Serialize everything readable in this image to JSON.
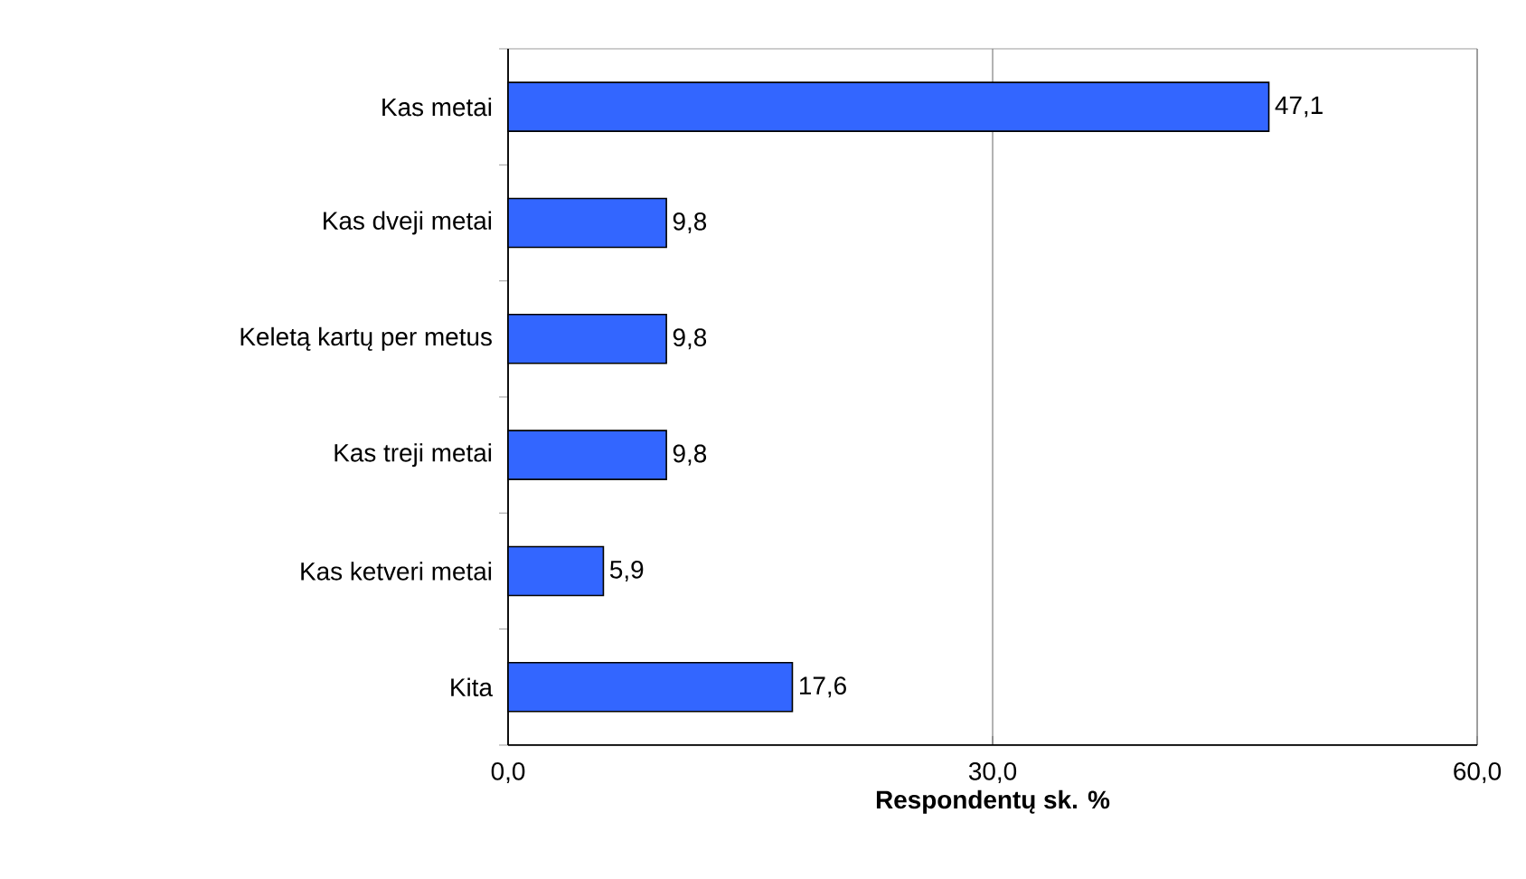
{
  "chart_data": {
    "type": "bar",
    "orientation": "horizontal",
    "categories": [
      "Kas metai",
      "Kas dveji metai",
      "Keletą kartų per metus",
      "Kas treji metai",
      "Kas ketveri metai",
      "Kita"
    ],
    "values": [
      47.1,
      9.8,
      9.8,
      9.8,
      5.9,
      17.6
    ],
    "value_labels": [
      "47,1",
      "9,8",
      "9,8",
      "9,8",
      "5,9",
      "17,6"
    ],
    "color": "#3366ff",
    "xlabel": "Respondentų sk. %",
    "xlim": [
      0,
      60
    ],
    "xticks": [
      {
        "value": 0,
        "label": "0,0"
      },
      {
        "value": 30,
        "label": "30,0"
      },
      {
        "value": 60,
        "label": "60,0"
      }
    ],
    "grid": "x"
  }
}
